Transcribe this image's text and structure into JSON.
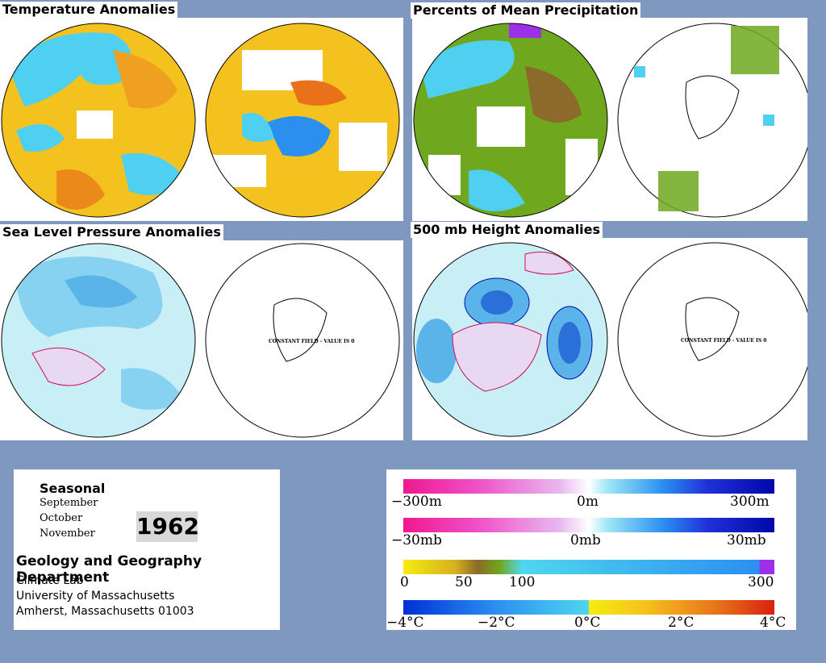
{
  "panels": {
    "temperature": {
      "title": "Temperature Anomalies"
    },
    "precipitation": {
      "title": "Percents of Mean Precipitation"
    },
    "slp": {
      "title": "Sea Level Pressure Anomalies",
      "south_note": "CONSTANT FIELD - VALUE IS 0"
    },
    "height500": {
      "title": "500 mb Height Anomalies",
      "south_note": "CONSTANT FIELD - VALUE IS 0"
    }
  },
  "info": {
    "season_label": "Seasonal",
    "months": [
      "September",
      "October",
      "November"
    ],
    "year": "1962",
    "department": "Geology and Geography Department",
    "lab": "Climate Lab",
    "university": "University of Massachusetts",
    "address": "Amherst, Massachusetts 01003"
  },
  "legend": {
    "height_scale": {
      "labels": [
        "−300m",
        "0m",
        "300m"
      ]
    },
    "pressure_scale": {
      "labels": [
        "−30mb",
        "0mb",
        "30mb"
      ]
    },
    "precip_scale": {
      "labels": [
        "0",
        "50",
        "100",
        "300"
      ]
    },
    "temp_scale": {
      "labels": [
        "−4°C",
        "−2°C",
        "0°C",
        "2°C",
        "4°C"
      ]
    }
  },
  "colors": {
    "background": "#7f98bf",
    "cold": "#2b8ff0",
    "cyan": "#4fd6f0",
    "warm": "#f6c21c",
    "hot": "#e8711a",
    "green": "#6fa81e",
    "purple": "#9b30e8",
    "magenta": "#f01890",
    "navy": "#0008a8"
  }
}
